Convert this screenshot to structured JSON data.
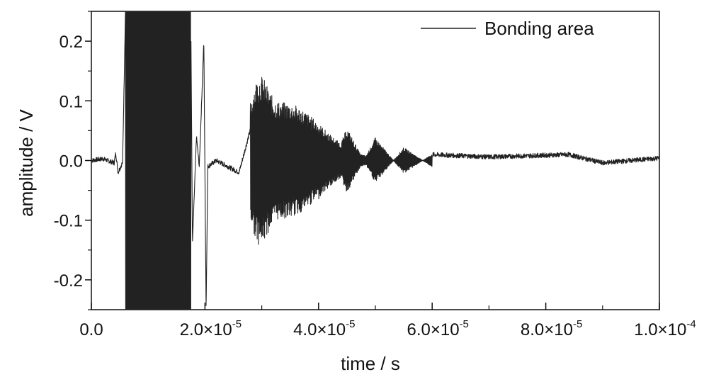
{
  "chart_data": {
    "type": "line",
    "xlabel": "time / s",
    "ylabel": "amplitude / V",
    "xlim": [
      0,
      0.0001
    ],
    "ylim": [
      -0.25,
      0.25
    ],
    "grid": false,
    "legend_position": "top-right",
    "x_ticks": [
      {
        "value": 0,
        "mantissa": "0.0",
        "exponent": ""
      },
      {
        "value": 2e-05,
        "mantissa": "2.0×10",
        "exponent": "-5"
      },
      {
        "value": 4e-05,
        "mantissa": "4.0×10",
        "exponent": "-5"
      },
      {
        "value": 6e-05,
        "mantissa": "6.0×10",
        "exponent": "-5"
      },
      {
        "value": 8e-05,
        "mantissa": "8.0×10",
        "exponent": "-5"
      },
      {
        "value": 0.0001,
        "mantissa": "1.0×10",
        "exponent": "-4"
      }
    ],
    "y_ticks": [
      {
        "value": 0.2,
        "label": "0.2"
      },
      {
        "value": 0.1,
        "label": "0.1"
      },
      {
        "value": 0.0,
        "label": "0.0"
      },
      {
        "value": -0.1,
        "label": "-0.1"
      },
      {
        "value": -0.2,
        "label": "-0.2"
      }
    ],
    "series": [
      {
        "name": "Bonding area",
        "color": "#222222",
        "points": [
          [
            0.0,
            0.0
          ],
          [
            2e-06,
            0.003
          ],
          [
            4e-06,
            -0.004
          ],
          [
            4.3e-06,
            0.012
          ],
          [
            4.7e-06,
            -0.02
          ],
          [
            5.5e-06,
            -0.003
          ],
          [
            6e-06,
            0.25
          ],
          [
            6.5e-06,
            -0.25
          ],
          [
            1e-05,
            0.25
          ],
          [
            1.4e-05,
            -0.25
          ],
          [
            1.75e-05,
            0.25
          ],
          [
            1.78e-05,
            -0.14
          ],
          [
            1.85e-05,
            0.04
          ],
          [
            1.9e-05,
            -0.01
          ],
          [
            1.98e-05,
            0.2
          ],
          [
            2.02e-05,
            -0.25
          ],
          [
            2.05e-05,
            -0.01
          ],
          [
            2.2e-05,
            0.0
          ],
          [
            2.6e-05,
            -0.02
          ],
          [
            2.85e-05,
            0.07
          ],
          [
            3e-05,
            -0.07
          ],
          [
            3.35e-05,
            0.085
          ],
          [
            3.45e-05,
            -0.088
          ],
          [
            4e-05,
            0.06
          ],
          [
            4.5e-05,
            -0.05
          ],
          [
            5e-05,
            0.035
          ],
          [
            5.5e-05,
            -0.02
          ],
          [
            6e-05,
            0.01
          ],
          [
            7e-05,
            0.006
          ],
          [
            8.4e-05,
            0.01
          ],
          [
            9e-05,
            -0.004
          ],
          [
            0.0001,
            0.004
          ]
        ]
      }
    ]
  }
}
